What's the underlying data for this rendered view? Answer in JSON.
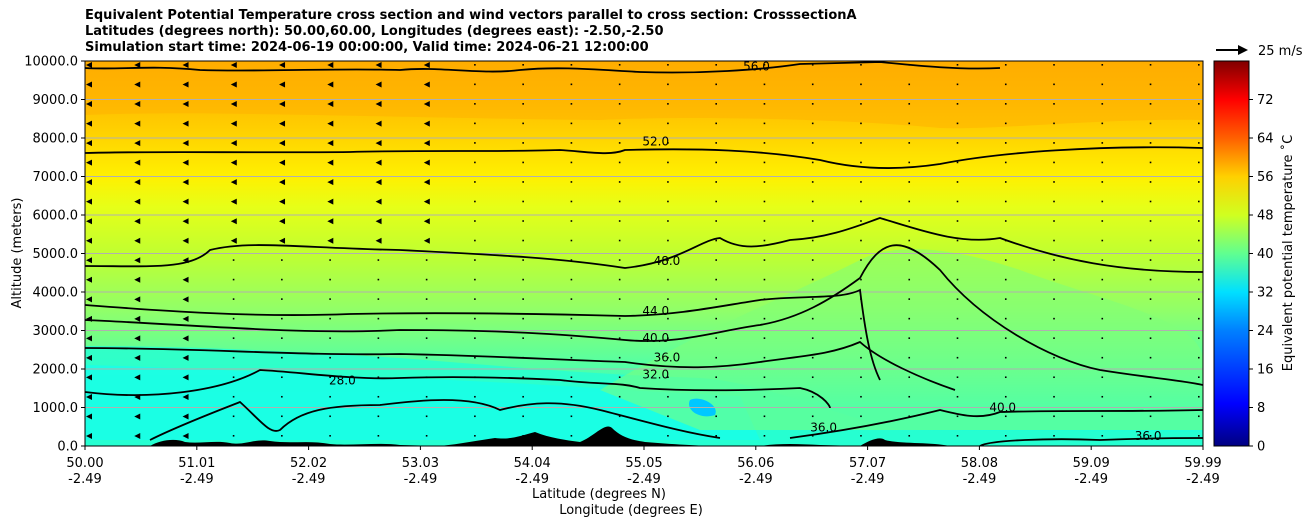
{
  "title_lines": [
    "Equivalent Potential Temperature cross section and wind vectors parallel to cross section: CrosssectionA",
    "Latitudes (degrees north): 50.00,60.00, Longitudes (degrees east): -2.50,-2.50",
    "Simulation start time: 2024-06-19 00:00:00, Valid time: 2024-06-21 12:00:00"
  ],
  "chart_data": {
    "type": "heatmap",
    "title": "Equivalent Potential Temperature cross section and wind vectors parallel to cross section: CrosssectionA",
    "ylabel": "Altitude (meters)",
    "xlabel_line1": "Latitude (degrees N)",
    "xlabel_line2": "Longitude (degrees E)",
    "ylim": [
      0,
      10000
    ],
    "yticks": [
      "0.0",
      "1000.0",
      "2000.0",
      "3000.0",
      "4000.0",
      "5000.0",
      "6000.0",
      "7000.0",
      "8000.0",
      "9000.0",
      "10000.0"
    ],
    "xticks_lat": [
      "50.00",
      "51.01",
      "52.02",
      "53.03",
      "54.04",
      "55.05",
      "56.06",
      "57.07",
      "58.08",
      "59.09",
      "59.99"
    ],
    "xticks_lon": [
      "-2.49",
      "-2.49",
      "-2.49",
      "-2.49",
      "-2.49",
      "-2.49",
      "-2.49",
      "-2.49",
      "-2.49",
      "-2.49",
      "-2.49"
    ],
    "colorbar": {
      "label": "Equivalent potential temperature ˚C",
      "range": [
        0,
        80
      ],
      "ticks": [
        "0",
        "8",
        "16",
        "24",
        "32",
        "40",
        "48",
        "56",
        "64",
        "72"
      ]
    },
    "wind_key": "25 m/s",
    "contour_levels": [
      28,
      32,
      36,
      40,
      44,
      48,
      52,
      56
    ],
    "contour_labels": [
      {
        "text": "56.0",
        "lat": 56.0,
        "z": 9750
      },
      {
        "text": "52.0",
        "lat": 55.1,
        "z": 7800
      },
      {
        "text": "48.0",
        "lat": 55.2,
        "z": 4700
      },
      {
        "text": "44.0",
        "lat": 55.1,
        "z": 3400
      },
      {
        "text": "40.0",
        "lat": 55.1,
        "z": 2700
      },
      {
        "text": "36.0",
        "lat": 55.2,
        "z": 2200
      },
      {
        "text": "32.0",
        "lat": 55.1,
        "z": 1750
      },
      {
        "text": "28.0",
        "lat": 52.3,
        "z": 1600
      },
      {
        "text": "36.0",
        "lat": 56.6,
        "z": 380
      },
      {
        "text": "40.0",
        "lat": 58.2,
        "z": 900
      },
      {
        "text": "36.0",
        "lat": 59.5,
        "z": 150
      }
    ]
  }
}
